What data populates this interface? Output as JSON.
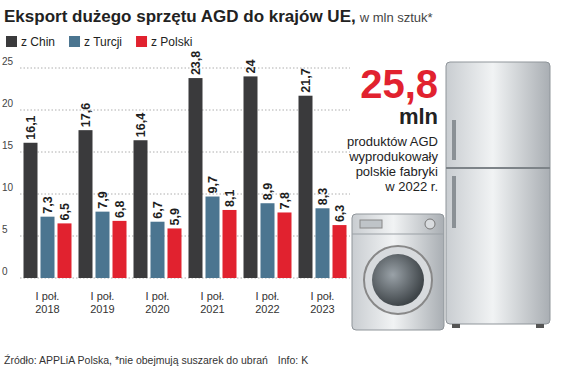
{
  "chart_data": {
    "type": "bar",
    "title": "Eksport dużego sprzętu AGD do krajów UE,",
    "subtitle": "w mln sztuk*",
    "categories": [
      "I poł. 2018",
      "I poł. 2019",
      "I poł. 2020",
      "I poł. 2021",
      "I poł. 2022",
      "I poł. 2023"
    ],
    "series": [
      {
        "name": "z Chin",
        "color": "#3a3a3c",
        "values": [
          16.1,
          17.6,
          16.4,
          23.8,
          24,
          21.7
        ],
        "value_labels": [
          "16,1",
          "17,6",
          "16,4",
          "23,8",
          "24",
          "21,7"
        ]
      },
      {
        "name": "z Turcji",
        "color": "#4b7590",
        "values": [
          7.3,
          7.9,
          6.7,
          9.7,
          8.9,
          8.3
        ],
        "value_labels": [
          "7,3",
          "7,9",
          "6,7",
          "9,7",
          "8,9",
          "8,3"
        ]
      },
      {
        "name": "z Polski",
        "color": "#e1222f",
        "values": [
          6.5,
          6.8,
          5.9,
          8.1,
          7.8,
          6.3
        ],
        "value_labels": [
          "6,5",
          "6,8",
          "5,9",
          "8,1",
          "7,8",
          "6,3"
        ]
      }
    ],
    "ylim": [
      0,
      25
    ],
    "yticks": [
      0,
      5,
      10,
      15,
      20,
      25
    ],
    "grid": true,
    "legend": "top left",
    "data_labels": true,
    "annotation": {
      "text": "25,8",
      "unit": "mln",
      "lines": [
        "produktów AGD",
        "wyprodukowały",
        "polskie fabryki",
        "w 2022 r."
      ]
    },
    "source": "Źródło: APPLiA Polska, *nie obejmują suszarek do ubrań",
    "credit": "Info: K"
  }
}
